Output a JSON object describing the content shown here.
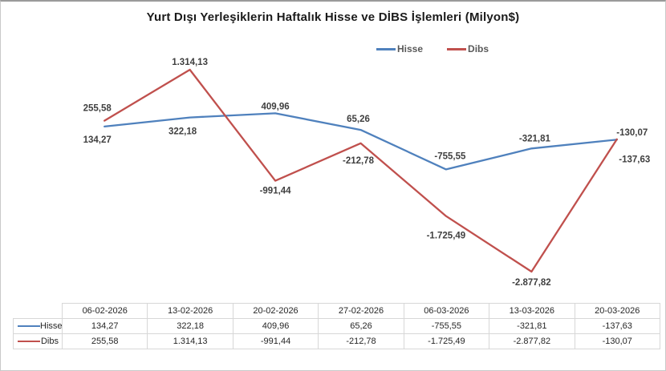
{
  "chart_data": {
    "type": "line",
    "title": "Yurt Dışı Yerleşiklerin Haftalık Hisse ve DİBS İşlemleri (Milyon$)",
    "categories": [
      "06-02-2026",
      "13-02-2026",
      "20-02-2026",
      "27-02-2026",
      "06-03-2026",
      "13-03-2026",
      "20-03-2026"
    ],
    "series": [
      {
        "name": "Hisse",
        "color": "#4F81BD",
        "values": [
          134.27,
          322.18,
          409.96,
          65.26,
          -755.55,
          -321.81,
          -137.63
        ],
        "labels": [
          "134,27",
          "322,18",
          "409,96",
          "65,26",
          "-755,55",
          "-321,81",
          "-137,63"
        ],
        "label_dx": [
          -9,
          -9,
          0,
          -3,
          5,
          4,
          22
        ],
        "label_dy": [
          20,
          21,
          -5,
          -10,
          -13,
          -9,
          28
        ]
      },
      {
        "name": "Dibs",
        "color": "#C0504D",
        "values": [
          255.58,
          1314.13,
          -991.44,
          -212.78,
          -1725.49,
          -2877.82,
          -130.07
        ],
        "labels": [
          "255,58",
          "1.314,13",
          "-991,44",
          "-212,78",
          "-1.725,49",
          "-2.877,82",
          "-130,07"
        ],
        "label_dx": [
          -9,
          0,
          0,
          -3,
          0,
          0,
          19
        ],
        "label_dy": [
          -12,
          -6,
          16,
          25,
          28,
          17,
          -5
        ]
      }
    ],
    "legend": {
      "entries": [
        "Hisse",
        "Dibs"
      ],
      "position": "top-center"
    },
    "gridlines": false,
    "axes_visible": false,
    "ylim": [
      -2877.82,
      1314.13
    ]
  },
  "table": {
    "corner_label": "",
    "columns": [
      "06-02-2026",
      "13-02-2026",
      "20-02-2026",
      "27-02-2026",
      "06-03-2026",
      "13-03-2026",
      "20-03-2026"
    ],
    "rows": [
      {
        "label": "Hisse",
        "cells": [
          "134,27",
          "322,18",
          "409,96",
          "65,26",
          "-755,55",
          "-321,81",
          "-137,63"
        ]
      },
      {
        "label": "Dibs",
        "cells": [
          "255,58",
          "1.314,13",
          "-991,44",
          "-212,78",
          "-1.725,49",
          "-2.877,82",
          "-130,07"
        ]
      }
    ]
  }
}
